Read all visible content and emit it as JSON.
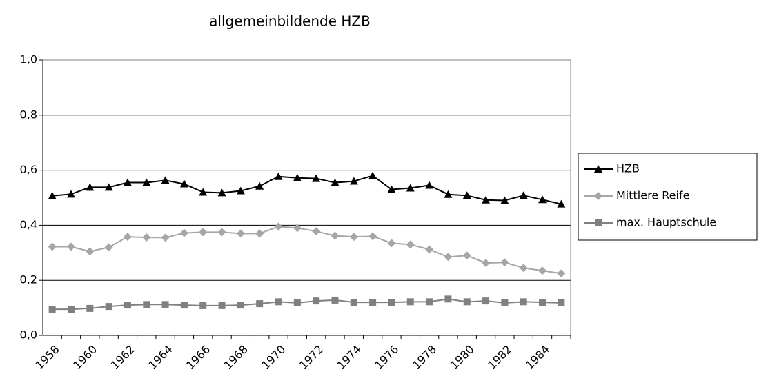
{
  "chart_data": {
    "type": "line",
    "title": "allgemeinbildende HZB",
    "categories": [
      1958,
      null,
      1960,
      null,
      1962,
      null,
      1964,
      null,
      1966,
      null,
      1968,
      null,
      1970,
      null,
      1972,
      null,
      1974,
      null,
      1976,
      null,
      1978,
      null,
      1980,
      null,
      1982,
      null,
      1984,
      null
    ],
    "series": [
      {
        "name": "HZB",
        "color": "#000000",
        "marker": "triangle",
        "values": [
          0.507,
          0.513,
          0.538,
          0.538,
          0.555,
          0.555,
          0.563,
          0.55,
          0.52,
          0.518,
          0.525,
          0.542,
          0.577,
          0.572,
          0.57,
          0.555,
          0.56,
          0.58,
          0.53,
          0.535,
          0.545,
          0.512,
          0.508,
          0.492,
          0.49,
          0.508,
          0.493,
          0.477
        ]
      },
      {
        "name": "Mittlere Reife",
        "color": "#a6a6a6",
        "marker": "diamond",
        "values": [
          0.322,
          0.322,
          0.305,
          0.32,
          0.358,
          0.356,
          0.355,
          0.372,
          0.375,
          0.375,
          0.37,
          0.37,
          0.395,
          0.39,
          0.378,
          0.362,
          0.358,
          0.36,
          0.335,
          0.33,
          0.312,
          0.285,
          0.29,
          0.263,
          0.265,
          0.245,
          0.235,
          0.225
        ]
      },
      {
        "name": "max. Hauptschule",
        "color": "#808080",
        "marker": "square",
        "values": [
          0.095,
          0.095,
          0.098,
          0.105,
          0.11,
          0.112,
          0.112,
          0.11,
          0.108,
          0.108,
          0.11,
          0.115,
          0.122,
          0.118,
          0.125,
          0.128,
          0.12,
          0.12,
          0.12,
          0.122,
          0.122,
          0.132,
          0.122,
          0.125,
          0.118,
          0.122,
          0.12,
          0.118
        ]
      }
    ],
    "ylim": [
      0,
      1
    ],
    "yticks": [
      {
        "value": 0,
        "label": "0,0"
      },
      {
        "value": 0.2,
        "label": "0,2"
      },
      {
        "value": 0.4,
        "label": "0,4"
      },
      {
        "value": 0.6,
        "label": "0,6"
      },
      {
        "value": 0.8,
        "label": "0,8"
      },
      {
        "value": 1,
        "label": "1,0"
      }
    ],
    "grid": true,
    "legend": "right"
  }
}
